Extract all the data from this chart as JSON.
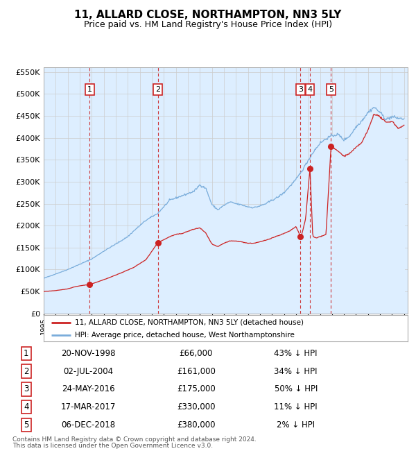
{
  "title": "11, ALLARD CLOSE, NORTHAMPTON, NN3 5LY",
  "subtitle": "Price paid vs. HM Land Registry's House Price Index (HPI)",
  "title_fontsize": 11,
  "subtitle_fontsize": 9,
  "hpi_color": "#7aaddb",
  "hpi_fill_color": "#ddeeff",
  "price_color": "#cc2222",
  "marker_color": "#cc2222",
  "background_color": "#ffffff",
  "grid_color": "#cccccc",
  "ylim": [
    0,
    560000
  ],
  "yticks": [
    0,
    50000,
    100000,
    150000,
    200000,
    250000,
    300000,
    350000,
    400000,
    450000,
    500000,
    550000
  ],
  "ytick_labels": [
    "£0",
    "£50K",
    "£100K",
    "£150K",
    "£200K",
    "£250K",
    "£300K",
    "£350K",
    "£400K",
    "£450K",
    "£500K",
    "£550K"
  ],
  "legend_label_red": "11, ALLARD CLOSE, NORTHAMPTON, NN3 5LY (detached house)",
  "legend_label_blue": "HPI: Average price, detached house, West Northamptonshire",
  "transactions": [
    {
      "num": 1,
      "date": "20-NOV-1998",
      "price": 66000,
      "pct": "43%",
      "dir": "↓"
    },
    {
      "num": 2,
      "date": "02-JUL-2004",
      "price": 161000,
      "pct": "34%",
      "dir": "↓"
    },
    {
      "num": 3,
      "date": "24-MAY-2016",
      "price": 175000,
      "pct": "50%",
      "dir": "↓"
    },
    {
      "num": 4,
      "date": "17-MAR-2017",
      "price": 330000,
      "pct": "11%",
      "dir": "↓"
    },
    {
      "num": 5,
      "date": "06-DEC-2018",
      "price": 380000,
      "pct": "2%",
      "dir": "↓"
    }
  ],
  "trans_x": [
    1998.833,
    2004.5,
    2016.375,
    2017.167,
    2018.917
  ],
  "trans_prices": [
    66000,
    161000,
    175000,
    330000,
    380000
  ],
  "footer_line1": "Contains HM Land Registry data © Crown copyright and database right 2024.",
  "footer_line2": "This data is licensed under the Open Government Licence v3.0.",
  "hpi_anchors_x": [
    1995.0,
    1996.0,
    1997.0,
    1998.0,
    1999.0,
    2000.0,
    2001.0,
    2002.0,
    2002.5,
    2003.5,
    2004.5,
    2005.5,
    2006.5,
    2007.5,
    2008.0,
    2008.5,
    2009.0,
    2009.5,
    2010.0,
    2010.5,
    2011.0,
    2011.5,
    2012.0,
    2012.5,
    2013.0,
    2013.5,
    2014.0,
    2014.5,
    2015.0,
    2015.5,
    2016.0,
    2016.5,
    2017.0,
    2017.5,
    2018.0,
    2018.5,
    2019.0,
    2019.5,
    2020.0,
    2020.5,
    2021.0,
    2021.5,
    2022.0,
    2022.5,
    2023.0,
    2023.5,
    2024.0,
    2024.5,
    2025.0
  ],
  "hpi_anchors_y": [
    80000,
    90000,
    100000,
    112000,
    124000,
    142000,
    158000,
    175000,
    188000,
    212000,
    228000,
    258000,
    268000,
    278000,
    293000,
    285000,
    248000,
    236000,
    246000,
    254000,
    250000,
    247000,
    243000,
    241000,
    245000,
    250000,
    258000,
    265000,
    275000,
    290000,
    305000,
    325000,
    348000,
    370000,
    388000,
    398000,
    405000,
    408000,
    395000,
    405000,
    425000,
    440000,
    458000,
    470000,
    458000,
    442000,
    448000,
    445000,
    443000
  ],
  "red_anchors_x": [
    1995.0,
    1996.0,
    1997.0,
    1997.5,
    1998.0,
    1998.833,
    1999.5,
    2000.5,
    2001.5,
    2002.5,
    2003.5,
    2004.5,
    2005.0,
    2005.5,
    2006.0,
    2006.5,
    2007.0,
    2007.5,
    2008.0,
    2008.5,
    2009.0,
    2009.5,
    2010.0,
    2010.5,
    2011.0,
    2011.5,
    2012.0,
    2012.5,
    2013.0,
    2013.5,
    2014.0,
    2015.0,
    2015.5,
    2016.0,
    2016.375,
    2016.5,
    2016.8,
    2017.167,
    2017.4,
    2017.7,
    2018.0,
    2018.5,
    2018.917,
    2019.2,
    2019.5,
    2020.0,
    2020.5,
    2021.0,
    2021.5,
    2022.0,
    2022.5,
    2023.0,
    2023.5,
    2024.0,
    2024.5,
    2025.0
  ],
  "red_anchors_y": [
    50000,
    52000,
    56000,
    60000,
    63000,
    66000,
    72000,
    82000,
    93000,
    105000,
    122000,
    161000,
    168000,
    175000,
    180000,
    182000,
    187000,
    192000,
    195000,
    183000,
    158000,
    152000,
    160000,
    165000,
    165000,
    163000,
    160000,
    160000,
    163000,
    167000,
    172000,
    182000,
    188000,
    198000,
    175000,
    182000,
    215000,
    330000,
    175000,
    172000,
    175000,
    180000,
    380000,
    375000,
    370000,
    358000,
    365000,
    378000,
    390000,
    418000,
    455000,
    448000,
    435000,
    438000,
    422000,
    428000
  ]
}
